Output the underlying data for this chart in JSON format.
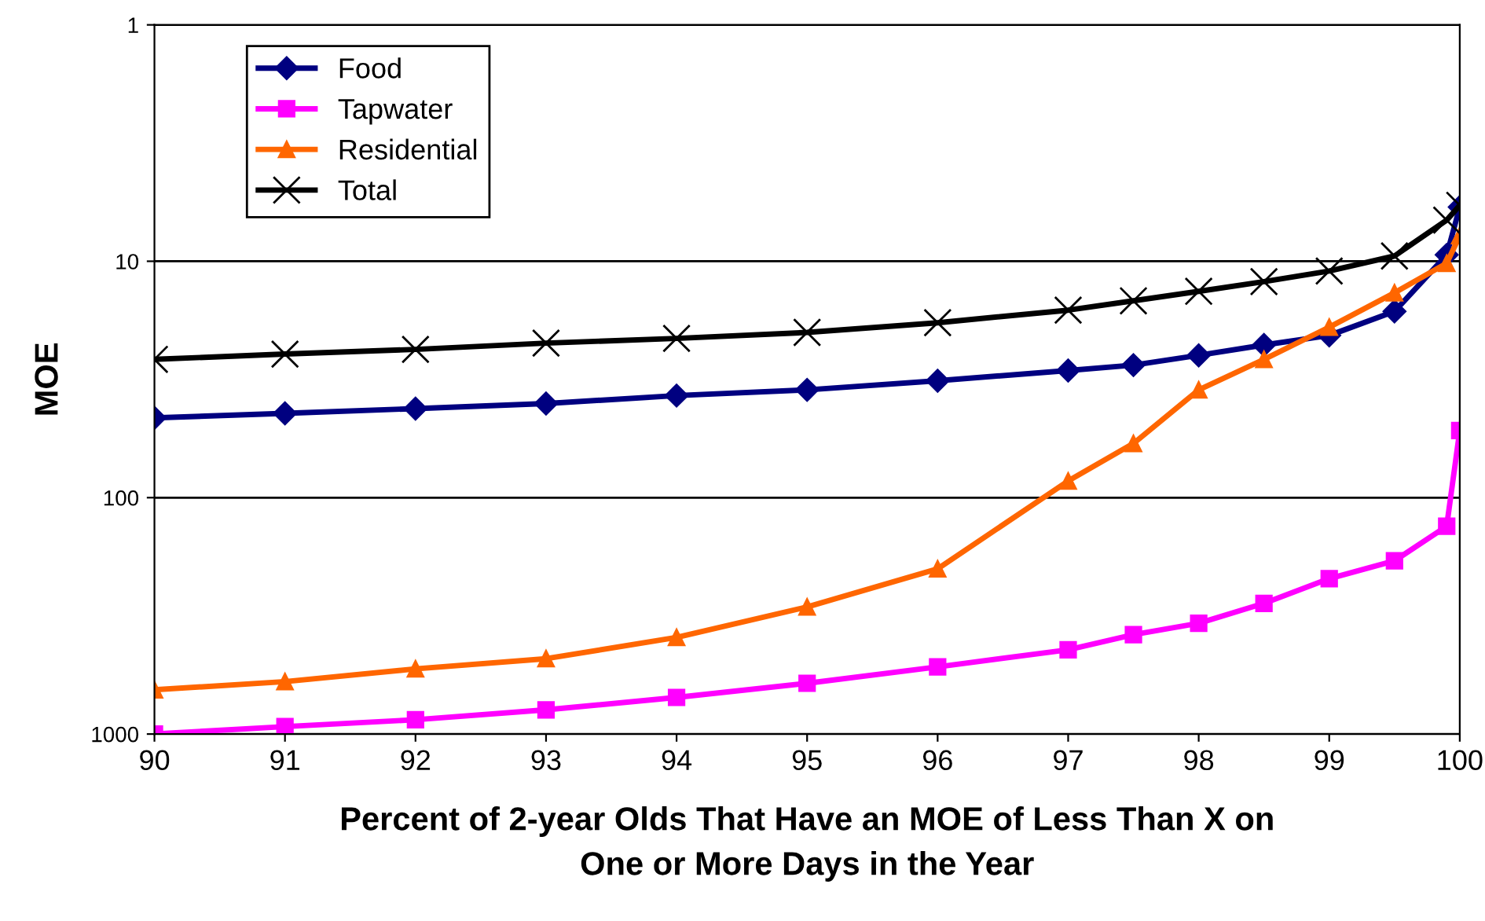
{
  "chart_data": {
    "type": "line",
    "xlabel": "Percent of 2-year Olds That Have an MOE of Less Than X on\nOne or More Days in the Year",
    "ylabel": "MOE",
    "x": [
      90,
      91,
      92,
      93,
      94,
      95,
      96,
      97,
      97.5,
      98,
      98.5,
      99,
      99.5,
      99.9,
      100
    ],
    "series": [
      {
        "name": "Food",
        "color": "#000080",
        "marker": "diamond",
        "values": [
          46,
          44,
          42,
          40,
          37,
          35,
          32,
          29,
          27.5,
          25,
          22.6,
          20.6,
          16.3,
          9.4,
          5.9
        ]
      },
      {
        "name": "Tapwater",
        "color": "#ff00ff",
        "marker": "square",
        "values": [
          1000,
          930,
          870,
          790,
          700,
          610,
          520,
          440,
          380,
          340,
          280,
          220,
          185,
          132,
          52
        ]
      },
      {
        "name": "Residential",
        "color": "#ff6600",
        "marker": "triangle",
        "values": [
          650,
          600,
          530,
          480,
          390,
          290,
          200,
          85,
          59,
          35,
          26,
          19,
          13.6,
          10.2,
          7.8
        ]
      },
      {
        "name": "Total",
        "color": "#000000",
        "marker": "cross",
        "values": [
          26,
          24.7,
          23.6,
          22.2,
          21.2,
          20,
          18.2,
          16.1,
          14.7,
          13.4,
          12.2,
          11,
          9.5,
          6.7,
          5.8
        ]
      }
    ],
    "log": "y",
    "xlim": [
      90,
      100
    ],
    "xticks": [
      90,
      91,
      92,
      93,
      94,
      95,
      96,
      97,
      98,
      99,
      100
    ],
    "ylim": [
      1000,
      1
    ],
    "yticks": [
      1,
      10,
      100,
      1000
    ],
    "grid": "y",
    "legend": "top left",
    "line_style": "solid"
  }
}
